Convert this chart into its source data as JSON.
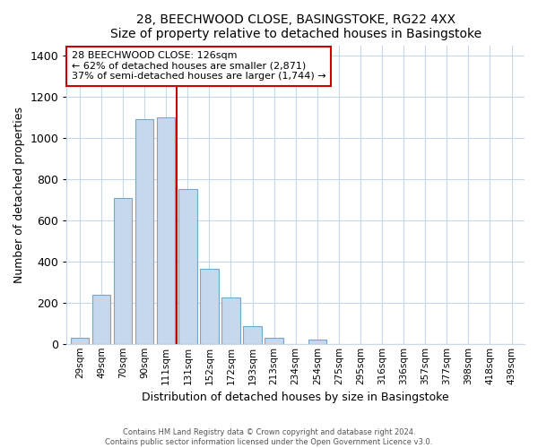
{
  "title": "28, BEECHWOOD CLOSE, BASINGSTOKE, RG22 4XX",
  "subtitle": "Size of property relative to detached houses in Basingstoke",
  "xlabel": "Distribution of detached houses by size in Basingstoke",
  "ylabel": "Number of detached properties",
  "bar_labels": [
    "29sqm",
    "49sqm",
    "70sqm",
    "90sqm",
    "111sqm",
    "131sqm",
    "152sqm",
    "172sqm",
    "193sqm",
    "213sqm",
    "234sqm",
    "254sqm",
    "275sqm",
    "295sqm",
    "316sqm",
    "336sqm",
    "357sqm",
    "377sqm",
    "398sqm",
    "418sqm",
    "439sqm"
  ],
  "bar_values": [
    30,
    240,
    710,
    1090,
    1100,
    750,
    365,
    225,
    85,
    30,
    0,
    20,
    0,
    0,
    0,
    0,
    0,
    0,
    0,
    0,
    0
  ],
  "bar_color": "#c5d8ee",
  "bar_edge_color": "#6fa8d6",
  "vline_color": "#cc0000",
  "ylim": [
    0,
    1450
  ],
  "yticks": [
    0,
    200,
    400,
    600,
    800,
    1000,
    1200,
    1400
  ],
  "annotation_title": "28 BEECHWOOD CLOSE: 126sqm",
  "annotation_line1": "← 62% of detached houses are smaller (2,871)",
  "annotation_line2": "37% of semi-detached houses are larger (1,744) →",
  "annotation_box_color": "#ffffff",
  "annotation_box_edge": "#cc0000",
  "footer1": "Contains HM Land Registry data © Crown copyright and database right 2024.",
  "footer2": "Contains public sector information licensed under the Open Government Licence v3.0.",
  "background_color": "#ffffff",
  "plot_bg_color": "#ffffff",
  "grid_color": "#c8d8e8"
}
